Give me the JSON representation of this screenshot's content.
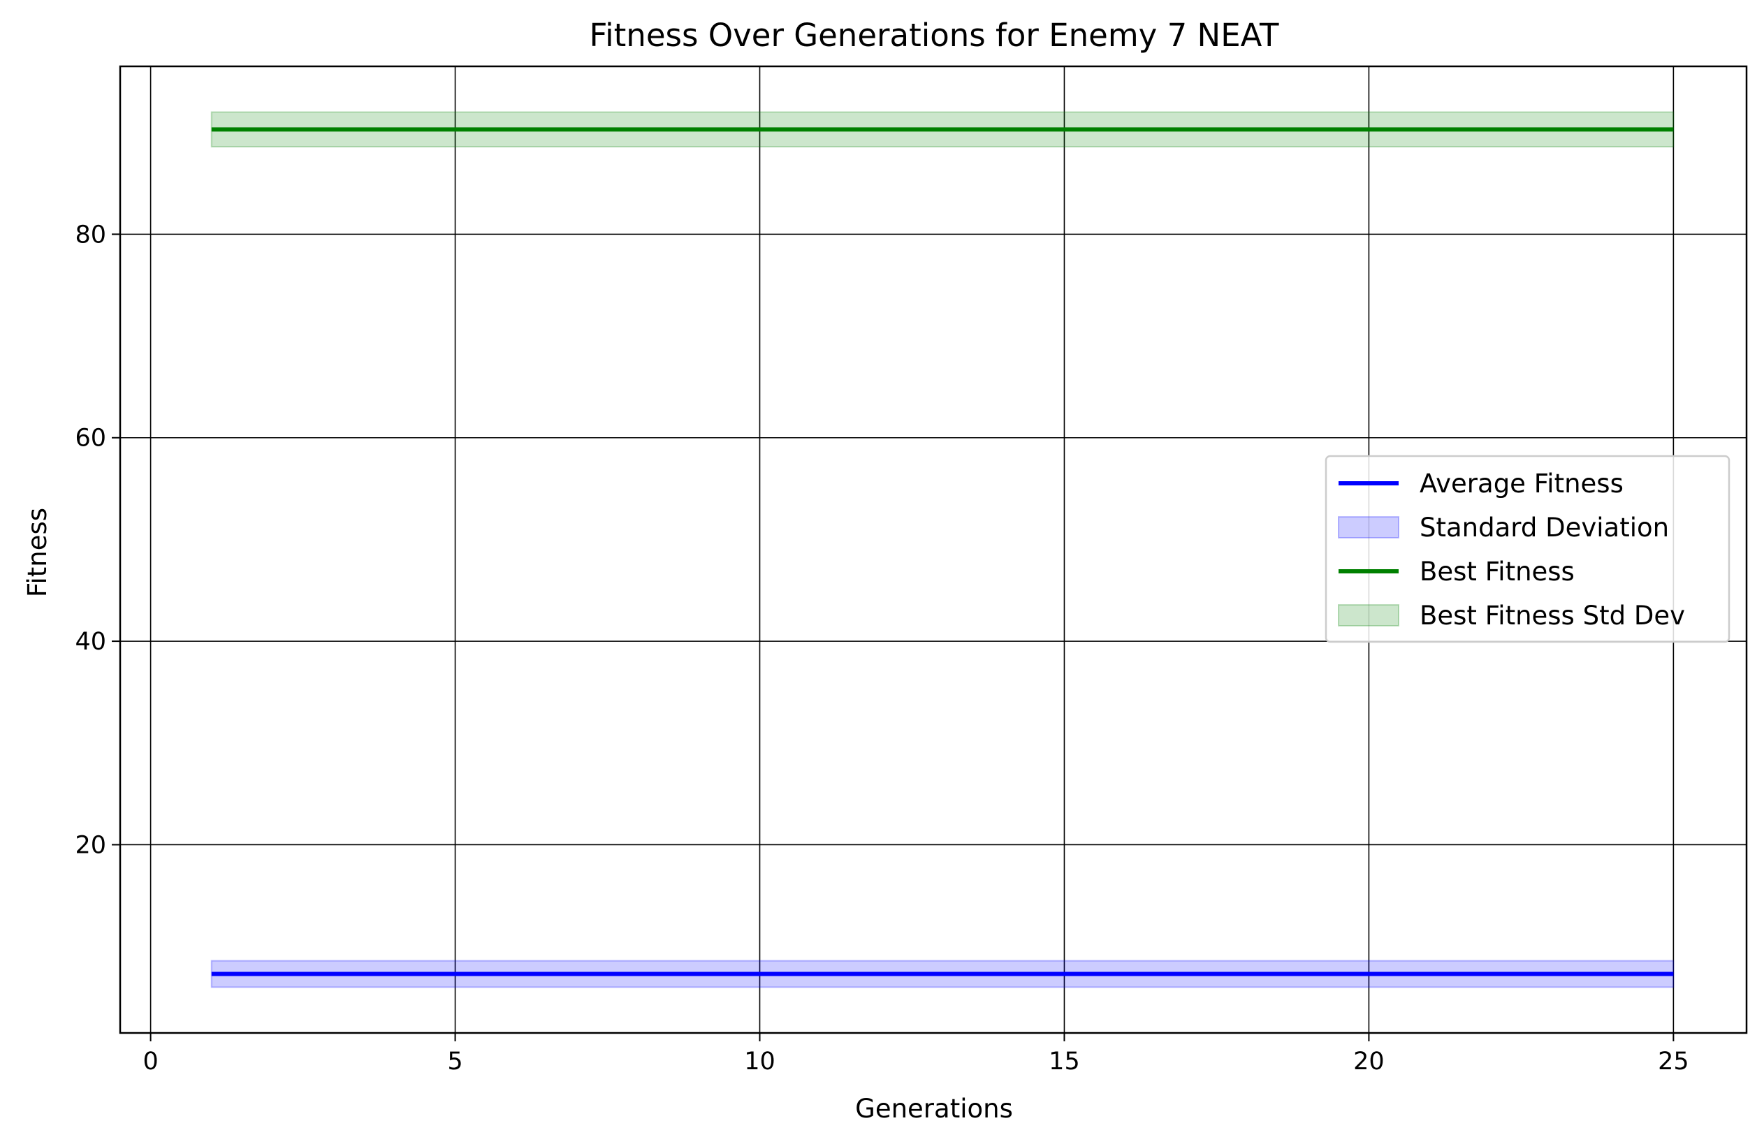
{
  "chart_data": {
    "type": "line",
    "title": "Fitness Over Generations for Enemy 7 NEAT",
    "xlabel": "Generations",
    "ylabel": "Fitness",
    "xlim": [
      -0.5,
      26.2
    ],
    "ylim": [
      1.5,
      96.5
    ],
    "xticks": [
      0,
      5,
      10,
      15,
      20,
      25
    ],
    "yticks": [
      20,
      40,
      60,
      80
    ],
    "grid": true,
    "legend_position": "center-right",
    "x": [
      1,
      2,
      3,
      4,
      5,
      6,
      7,
      8,
      9,
      10,
      11,
      12,
      13,
      14,
      15,
      16,
      17,
      18,
      19,
      20,
      21,
      22,
      23,
      24,
      25
    ],
    "series": [
      {
        "name": "Average Fitness",
        "kind": "line",
        "color": "#0000ff",
        "values": [
          7.3,
          7.3,
          7.3,
          7.3,
          7.3,
          7.3,
          7.3,
          7.3,
          7.3,
          7.3,
          7.3,
          7.3,
          7.3,
          7.3,
          7.3,
          7.3,
          7.3,
          7.3,
          7.3,
          7.3,
          7.3,
          7.3,
          7.3,
          7.3,
          7.3
        ]
      },
      {
        "name": "Standard Deviation",
        "kind": "band",
        "color": "#0000ff",
        "lower": [
          6.0,
          6.0,
          6.0,
          6.0,
          6.0,
          6.0,
          6.0,
          6.0,
          6.0,
          6.0,
          6.0,
          6.0,
          6.0,
          6.0,
          6.0,
          6.0,
          6.0,
          6.0,
          6.0,
          6.0,
          6.0,
          6.0,
          6.0,
          6.0,
          6.0
        ],
        "upper": [
          8.6,
          8.6,
          8.6,
          8.6,
          8.6,
          8.6,
          8.6,
          8.6,
          8.6,
          8.6,
          8.6,
          8.6,
          8.6,
          8.6,
          8.6,
          8.6,
          8.6,
          8.6,
          8.6,
          8.6,
          8.6,
          8.6,
          8.6,
          8.6,
          8.6
        ]
      },
      {
        "name": "Best Fitness",
        "kind": "line",
        "color": "#008000",
        "values": [
          90.3,
          90.3,
          90.3,
          90.3,
          90.3,
          90.3,
          90.3,
          90.3,
          90.3,
          90.3,
          90.3,
          90.3,
          90.3,
          90.3,
          90.3,
          90.3,
          90.3,
          90.3,
          90.3,
          90.3,
          90.3,
          90.3,
          90.3,
          90.3,
          90.3
        ]
      },
      {
        "name": "Best Fitness Std Dev",
        "kind": "band",
        "color": "#008000",
        "lower": [
          88.6,
          88.6,
          88.6,
          88.6,
          88.6,
          88.6,
          88.6,
          88.6,
          88.6,
          88.6,
          88.6,
          88.6,
          88.6,
          88.6,
          88.6,
          88.6,
          88.6,
          88.6,
          88.6,
          88.6,
          88.6,
          88.6,
          88.6,
          88.6,
          88.6
        ],
        "upper": [
          92.0,
          92.0,
          92.0,
          92.0,
          92.0,
          92.0,
          92.0,
          92.0,
          92.0,
          92.0,
          92.0,
          92.0,
          92.0,
          92.0,
          92.0,
          92.0,
          92.0,
          92.0,
          92.0,
          92.0,
          92.0,
          92.0,
          92.0,
          92.0,
          92.0
        ]
      }
    ]
  }
}
